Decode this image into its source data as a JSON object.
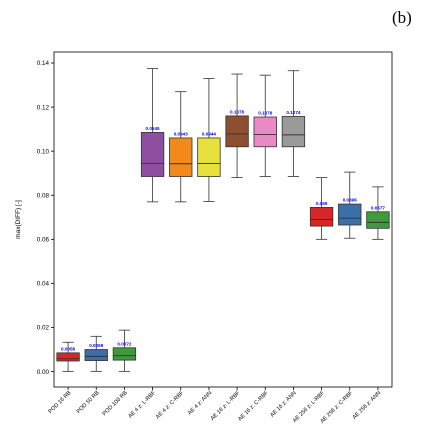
{
  "panel_label": "(b)",
  "chart_data": {
    "type": "box",
    "ylabel": "max(DIFF) [-]",
    "xlabel": "",
    "ylim": [
      -0.007,
      0.145
    ],
    "yticks": [
      0.0,
      0.02,
      0.04,
      0.06,
      0.08,
      0.1,
      0.12,
      0.14
    ],
    "ytick_labels": [
      "0.00",
      "0.02",
      "0.04",
      "0.06",
      "0.08",
      "0.10",
      "0.12",
      "0.14"
    ],
    "grid": false,
    "label_color": "#0000ff",
    "boxes": [
      {
        "label": "POD 16 RB",
        "min": 0.0001,
        "q1": 0.0048,
        "median": 0.0058,
        "q3": 0.0085,
        "max": 0.0133,
        "annotation": "0.0058",
        "color": "#d62728"
      },
      {
        "label": "POD 50 RB",
        "min": 0.0001,
        "q1": 0.005,
        "median": 0.0069,
        "q3": 0.01,
        "max": 0.016,
        "annotation": "0.0069",
        "color": "#3a6fa8"
      },
      {
        "label": "POD 100 RB",
        "min": 0.0001,
        "q1": 0.0052,
        "median": 0.0072,
        "q3": 0.0108,
        "max": 0.0188,
        "annotation": "0.0072",
        "color": "#3e9a3e"
      },
      {
        "label": "AE 4 z: L-RBF",
        "min": 0.077,
        "q1": 0.0885,
        "median": 0.0945,
        "q3": 0.1085,
        "max": 0.1375,
        "annotation": "0.0945",
        "color": "#8e4fa0"
      },
      {
        "label": "AE 4 z: C-RBF",
        "min": 0.077,
        "q1": 0.0885,
        "median": 0.0943,
        "q3": 0.106,
        "max": 0.127,
        "annotation": "0.0943",
        "color": "#f28a1a"
      },
      {
        "label": "AE 4 z: ANN",
        "min": 0.0772,
        "q1": 0.0885,
        "median": 0.0944,
        "q3": 0.106,
        "max": 0.133,
        "annotation": "0.0944",
        "color": "#e8e03c"
      },
      {
        "label": "AE 16 z: L-RBF",
        "min": 0.088,
        "q1": 0.102,
        "median": 0.1078,
        "q3": 0.116,
        "max": 0.135,
        "annotation": "0.1078",
        "color": "#8c5030"
      },
      {
        "label": "AE 16 z: C-RBF",
        "min": 0.0885,
        "q1": 0.102,
        "median": 0.1076,
        "q3": 0.1155,
        "max": 0.1345,
        "annotation": "0.1076",
        "color": "#e98ac4"
      },
      {
        "label": "AE 16 z: ANN",
        "min": 0.0885,
        "q1": 0.102,
        "median": 0.1074,
        "q3": 0.1158,
        "max": 0.1365,
        "annotation": "0.1074",
        "color": "#9a9a9a"
      },
      {
        "label": "AE 256 z: L-RBF",
        "min": 0.06,
        "q1": 0.066,
        "median": 0.069,
        "q3": 0.0745,
        "max": 0.088,
        "annotation": "0.069",
        "color": "#d62728"
      },
      {
        "label": "AE 256 z: C-RBF",
        "min": 0.0605,
        "q1": 0.0665,
        "median": 0.0696,
        "q3": 0.076,
        "max": 0.0905,
        "annotation": "0.0696",
        "color": "#3a6fa8"
      },
      {
        "label": "AE 256 z: ANN",
        "min": 0.06,
        "q1": 0.065,
        "median": 0.0677,
        "q3": 0.0725,
        "max": 0.0838,
        "annotation": "0.0677",
        "color": "#3e9a3e"
      }
    ]
  }
}
